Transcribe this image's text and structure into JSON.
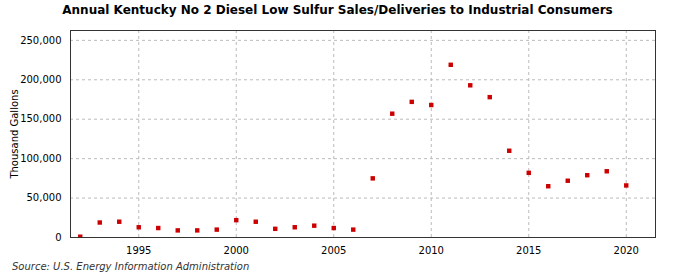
{
  "chart_data": {
    "type": "scatter",
    "title": "Annual Kentucky No 2 Diesel Low Sulfur Sales/Deliveries to Industrial Consumers",
    "ylabel": "Thousand Gallons",
    "source": "Source: U.S. Energy Information Administration",
    "x": [
      1992,
      1993,
      1994,
      1995,
      1996,
      1997,
      1998,
      1999,
      2000,
      2001,
      2002,
      2003,
      2004,
      2005,
      2006,
      2007,
      2008,
      2009,
      2010,
      2011,
      2012,
      2013,
      2014,
      2015,
      2016,
      2017,
      2018,
      2019,
      2020
    ],
    "values": [
      1000,
      19000,
      20000,
      13000,
      12000,
      9000,
      9000,
      10000,
      22000,
      20000,
      11000,
      13000,
      15000,
      12000,
      10000,
      75000,
      157000,
      172000,
      168000,
      219000,
      193000,
      178000,
      110000,
      82000,
      65000,
      72000,
      79000,
      84000,
      66000
    ],
    "color": "#cc0000",
    "marker": "square",
    "xlim": [
      1991.5,
      2021.5
    ],
    "xticks": [
      1995,
      2000,
      2005,
      2010,
      2015,
      2020
    ],
    "ylim": [
      0,
      262500
    ],
    "yticks": [
      0,
      {
        "value": 50000,
        "label": "50,000"
      },
      {
        "value": 100000,
        "label": "100,000"
      },
      {
        "value": 150000,
        "label": "150,000"
      },
      {
        "value": 200000,
        "label": "200,000"
      },
      {
        "value": 250000,
        "label": "250,000"
      }
    ],
    "grid": true
  }
}
